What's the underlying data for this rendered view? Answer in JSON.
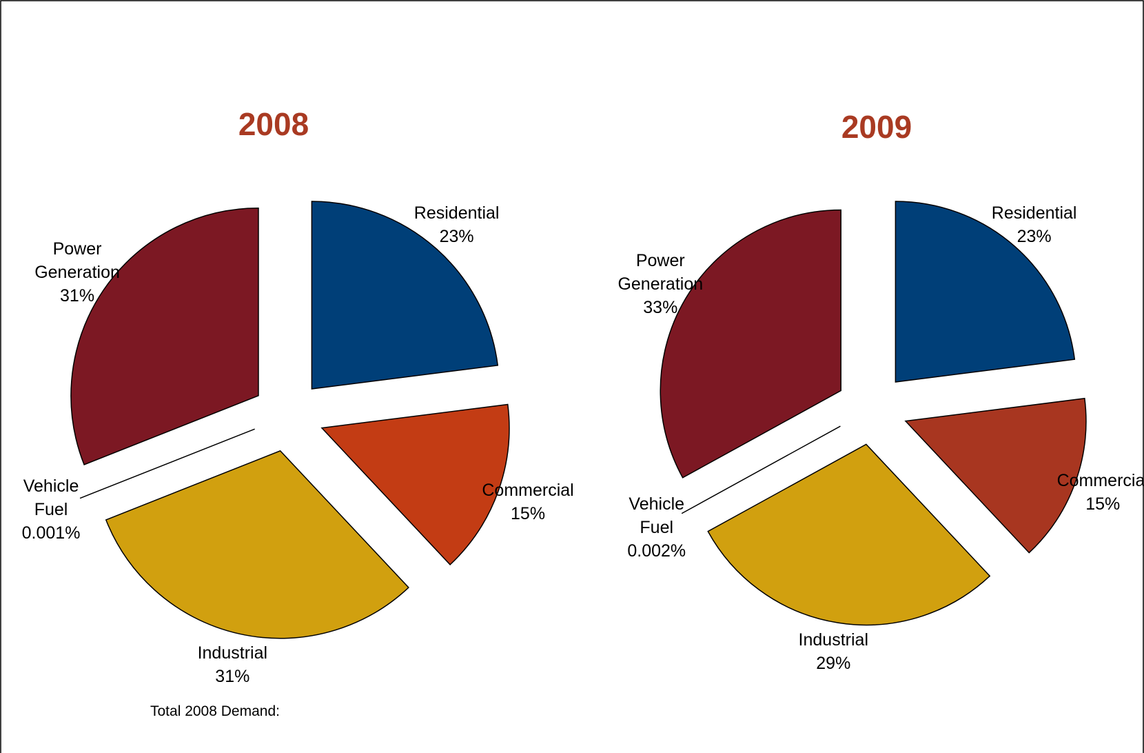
{
  "chart_data": [
    {
      "type": "pie",
      "title": "2008",
      "categories": [
        "Residential",
        "Commercial",
        "Industrial",
        "Vehicle Fuel",
        "Power Generation"
      ],
      "values": [
        23,
        15,
        31,
        0.001,
        31
      ],
      "value_labels": [
        "23%",
        "15%",
        "31%",
        "0.001%",
        "31%"
      ],
      "colors": [
        "#003f78",
        "#c33c14",
        "#d1a00f",
        "#4f7a4f",
        "#7c1823"
      ],
      "annotation": "Total 2008 Demand:"
    },
    {
      "type": "pie",
      "title": "2009",
      "categories": [
        "Residential",
        "Commercial",
        "Industrial",
        "Vehicle Fuel",
        "Power Generation"
      ],
      "values": [
        23,
        15,
        29,
        0.002,
        33
      ],
      "value_labels": [
        "23%",
        "15%",
        "29%",
        "0.002%",
        "33%"
      ],
      "colors": [
        "#003f78",
        "#a83620",
        "#d1a00f",
        "#4f7a4f",
        "#7c1823"
      ]
    }
  ]
}
